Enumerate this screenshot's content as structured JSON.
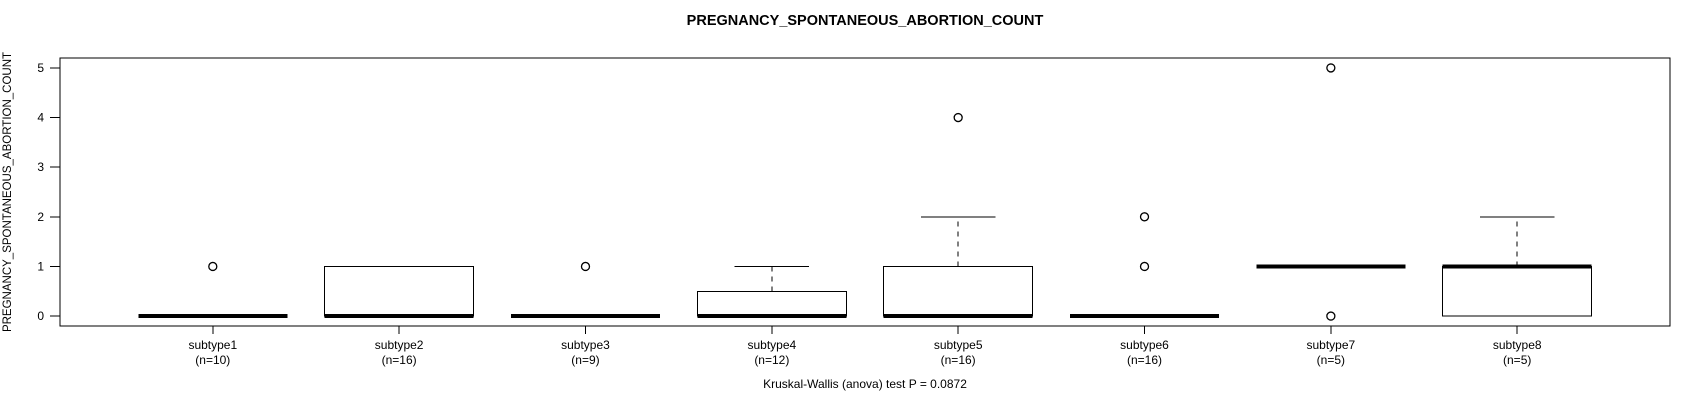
{
  "chart_data": {
    "type": "boxplot",
    "title": "PREGNANCY_SPONTANEOUS_ABORTION_COUNT",
    "ylabel": "PREGNANCY_SPONTANEOUS_ABORTION_COUNT",
    "caption": "Kruskal-Wallis (anova) test P = 0.0872",
    "ylim": [
      0,
      5
    ],
    "yticks": [
      0,
      1,
      2,
      3,
      4,
      5
    ],
    "grid": false,
    "legend": "none",
    "colors": {
      "stroke": "#000000",
      "background": "#ffffff"
    },
    "groups": [
      {
        "label": "subtype1",
        "sublabel": "(n=10)",
        "n": 10,
        "stats": {
          "low": 0,
          "q1": 0,
          "median": 0,
          "q3": 0,
          "high": 0
        },
        "outliers": [
          1
        ]
      },
      {
        "label": "subtype2",
        "sublabel": "(n=16)",
        "n": 16,
        "stats": {
          "low": 0,
          "q1": 0,
          "median": 0,
          "q3": 1,
          "high": 1
        },
        "outliers": []
      },
      {
        "label": "subtype3",
        "sublabel": "(n=9)",
        "n": 9,
        "stats": {
          "low": 0,
          "q1": 0,
          "median": 0,
          "q3": 0,
          "high": 0
        },
        "outliers": [
          1
        ]
      },
      {
        "label": "subtype4",
        "sublabel": "(n=12)",
        "n": 12,
        "stats": {
          "low": 0,
          "q1": 0,
          "median": 0,
          "q3": 0.5,
          "high": 1
        },
        "outliers": []
      },
      {
        "label": "subtype5",
        "sublabel": "(n=16)",
        "n": 16,
        "stats": {
          "low": 0,
          "q1": 0,
          "median": 0,
          "q3": 1,
          "high": 2
        },
        "outliers": [
          4
        ]
      },
      {
        "label": "subtype6",
        "sublabel": "(n=16)",
        "n": 16,
        "stats": {
          "low": 0,
          "q1": 0,
          "median": 0,
          "q3": 0,
          "high": 0
        },
        "outliers": [
          1,
          2
        ]
      },
      {
        "label": "subtype7",
        "sublabel": "(n=5)",
        "n": 5,
        "stats": {
          "low": 1,
          "q1": 1,
          "median": 1,
          "q3": 1,
          "high": 1
        },
        "outliers": [
          0,
          5
        ]
      },
      {
        "label": "subtype8",
        "sublabel": "(n=5)",
        "n": 5,
        "stats": {
          "low": 0,
          "q1": 0,
          "median": 1,
          "q3": 1,
          "high": 2
        },
        "outliers": []
      }
    ]
  }
}
